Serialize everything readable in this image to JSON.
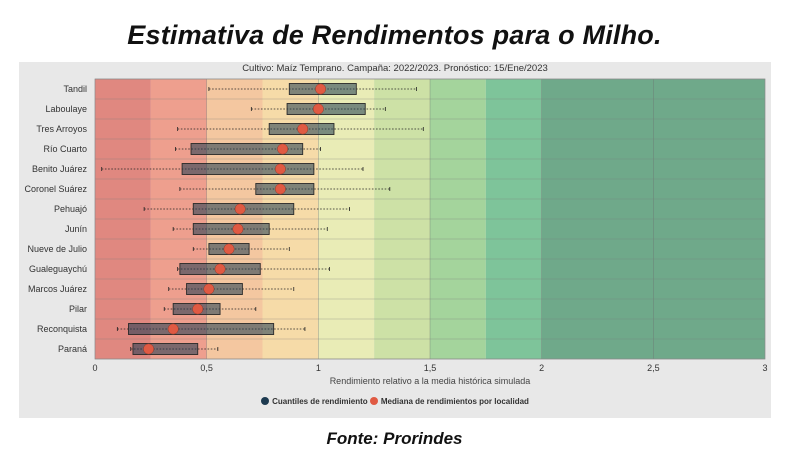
{
  "title": "Estimativa de Rendimentos para o Milho.",
  "source": "Fonte: Prorindes",
  "chart_data": {
    "type": "boxplot",
    "subtitle": "Cultivo: Maíz Temprano. Campaña: 2022/2023. Pronóstico: 15/Ene/2023",
    "xlabel": "Rendimiento relativo a la media histórica simulada",
    "xlim": [
      0,
      3
    ],
    "xticks": [
      0,
      0.5,
      1,
      1.5,
      2,
      2.5,
      3
    ],
    "xtick_labels": [
      "0",
      "0,5",
      "1",
      "1,5",
      "2",
      "2,5",
      "3"
    ],
    "bands": [
      {
        "from": 0,
        "to": 0.25,
        "color": "#e08880"
      },
      {
        "from": 0.25,
        "to": 0.5,
        "color": "#ee9f8e"
      },
      {
        "from": 0.5,
        "to": 0.75,
        "color": "#f4c7a0"
      },
      {
        "from": 0.75,
        "to": 1.0,
        "color": "#f6dba8"
      },
      {
        "from": 1.0,
        "to": 1.25,
        "color": "#e9ecb6"
      },
      {
        "from": 1.25,
        "to": 1.5,
        "color": "#cde1a6"
      },
      {
        "from": 1.5,
        "to": 1.75,
        "color": "#a4d49c"
      },
      {
        "from": 1.75,
        "to": 2.0,
        "color": "#7ec49a"
      },
      {
        "from": 2.0,
        "to": 3.0,
        "color": "#6fa98a"
      }
    ],
    "legend": [
      {
        "label": "Cuantiles de rendimiento",
        "color": "#1d3a50"
      },
      {
        "label": "Mediana de rendimientos por localidad",
        "color": "#e05a43"
      }
    ],
    "series": [
      {
        "name": "Tandil",
        "min": 0.51,
        "q1": 0.87,
        "median": 1.01,
        "q3": 1.17,
        "max": 1.44
      },
      {
        "name": "Laboulaye",
        "min": 0.7,
        "q1": 0.86,
        "median": 1.0,
        "q3": 1.21,
        "max": 1.3
      },
      {
        "name": "Tres Arroyos",
        "min": 0.37,
        "q1": 0.78,
        "median": 0.93,
        "q3": 1.07,
        "max": 1.47
      },
      {
        "name": "Río Cuarto",
        "min": 0.36,
        "q1": 0.43,
        "median": 0.84,
        "q3": 0.93,
        "max": 1.01
      },
      {
        "name": "Benito Juárez",
        "min": 0.03,
        "q1": 0.39,
        "median": 0.83,
        "q3": 0.98,
        "max": 1.2
      },
      {
        "name": "Coronel Suárez",
        "min": 0.38,
        "q1": 0.72,
        "median": 0.83,
        "q3": 0.98,
        "max": 1.32
      },
      {
        "name": "Pehuajó",
        "min": 0.22,
        "q1": 0.44,
        "median": 0.65,
        "q3": 0.89,
        "max": 1.14
      },
      {
        "name": "Junín",
        "min": 0.35,
        "q1": 0.44,
        "median": 0.64,
        "q3": 0.78,
        "max": 1.04
      },
      {
        "name": "Nueve de Julio",
        "min": 0.44,
        "q1": 0.51,
        "median": 0.6,
        "q3": 0.69,
        "max": 0.87
      },
      {
        "name": "Gualeguaychú",
        "min": 0.37,
        "q1": 0.38,
        "median": 0.56,
        "q3": 0.74,
        "max": 1.05
      },
      {
        "name": "Marcos Juárez",
        "min": 0.33,
        "q1": 0.41,
        "median": 0.51,
        "q3": 0.66,
        "max": 0.89
      },
      {
        "name": "Pilar",
        "min": 0.31,
        "q1": 0.35,
        "median": 0.46,
        "q3": 0.56,
        "max": 0.72
      },
      {
        "name": "Reconquista",
        "min": 0.1,
        "q1": 0.15,
        "median": 0.35,
        "q3": 0.8,
        "max": 0.94
      },
      {
        "name": "Paraná",
        "min": 0.16,
        "q1": 0.17,
        "median": 0.24,
        "q3": 0.46,
        "max": 0.55
      }
    ]
  }
}
